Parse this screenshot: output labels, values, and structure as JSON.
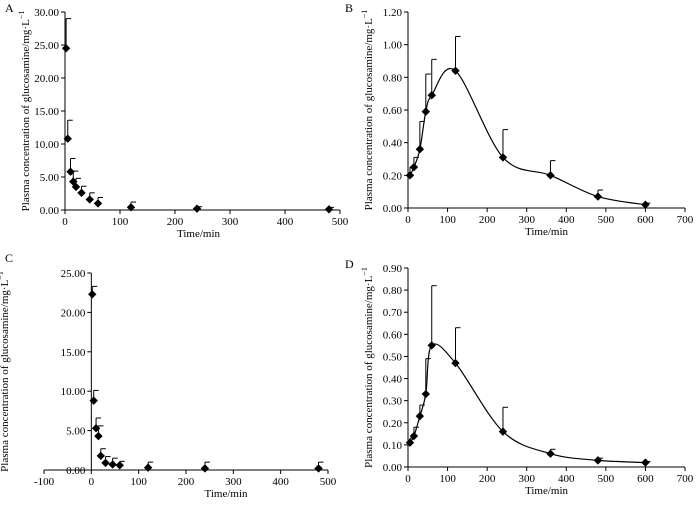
{
  "chart_data": [
    {
      "panel": "A",
      "type": "scatter",
      "xlabel": "Time/min",
      "ylabel": "Plasma concentration of glucosamine/mg·L",
      "ylabel_sup": "−1",
      "xlim": [
        0,
        500
      ],
      "ylim": [
        0,
        30
      ],
      "x_ticks": [
        0,
        100,
        200,
        300,
        400,
        500
      ],
      "y_ticks": [
        0,
        5,
        10,
        15,
        20,
        25,
        30
      ],
      "y_ticklabels": [
        "0.00",
        "5.00",
        "10.00",
        "15.00",
        "20.00",
        "25.00",
        "30.00"
      ],
      "x": [
        2,
        5,
        10,
        15,
        20,
        30,
        45,
        60,
        120,
        240,
        480
      ],
      "y": [
        24.5,
        10.8,
        5.8,
        4.3,
        3.5,
        2.6,
        1.6,
        1.0,
        0.4,
        0.2,
        0.1
      ],
      "err": [
        4.5,
        2.8,
        2.0,
        1.6,
        1.3,
        1.0,
        1.0,
        0.9,
        0.8,
        0.3,
        0.3
      ],
      "curve": false
    },
    {
      "panel": "B",
      "type": "line",
      "xlabel": "Time/min",
      "ylabel": "Plasma concentration of glucosamine/mg·L",
      "ylabel_sup": "−1",
      "xlim": [
        0,
        700
      ],
      "ylim": [
        0,
        1.2
      ],
      "x_ticks": [
        0,
        100,
        200,
        300,
        400,
        500,
        600,
        700
      ],
      "y_ticks": [
        0,
        0.2,
        0.4,
        0.6,
        0.8,
        1.0,
        1.2
      ],
      "y_ticklabels": [
        "0.00",
        "0.20",
        "0.40",
        "0.60",
        "0.80",
        "1.00",
        "1.20"
      ],
      "x": [
        5,
        15,
        30,
        45,
        60,
        120,
        240,
        360,
        480,
        600
      ],
      "y": [
        0.2,
        0.25,
        0.36,
        0.59,
        0.69,
        0.84,
        0.31,
        0.2,
        0.07,
        0.02
      ],
      "err": [
        0.05,
        0.06,
        0.17,
        0.23,
        0.22,
        0.21,
        0.17,
        0.09,
        0.04,
        0.01
      ],
      "curve": true
    },
    {
      "panel": "C",
      "type": "scatter",
      "xlabel": "Time/min",
      "ylabel": "Plasma concentration of glucosamine/mg·L",
      "ylabel_sup": "−1",
      "xlim": [
        -100,
        500
      ],
      "ylim": [
        0,
        25
      ],
      "x_ticks": [
        -100,
        0,
        100,
        200,
        300,
        400,
        500
      ],
      "y_ticks": [
        0,
        5,
        10,
        15,
        20,
        25
      ],
      "y_ticklabels": [
        "0.00",
        "5.00",
        "10.00",
        "15.00",
        "20.00",
        "25.00"
      ],
      "x": [
        2,
        5,
        10,
        15,
        20,
        30,
        45,
        60,
        120,
        240,
        480
      ],
      "y": [
        22.3,
        8.8,
        5.3,
        4.3,
        1.8,
        0.9,
        0.7,
        0.6,
        0.3,
        0.2,
        0.2
      ],
      "err": [
        1.0,
        1.3,
        1.3,
        1.3,
        0.9,
        0.8,
        0.8,
        0.5,
        0.7,
        0.8,
        0.8
      ],
      "curve": false
    },
    {
      "panel": "D",
      "type": "line",
      "xlabel": "Time/min",
      "ylabel": "Plasma concentration of glucosamine/mg·L",
      "ylabel_sup": "−1",
      "xlim": [
        0,
        700
      ],
      "ylim": [
        0,
        0.9
      ],
      "x_ticks": [
        0,
        100,
        200,
        300,
        400,
        500,
        600,
        700
      ],
      "y_ticks": [
        0,
        0.1,
        0.2,
        0.3,
        0.4,
        0.5,
        0.6,
        0.7,
        0.8,
        0.9
      ],
      "y_ticklabels": [
        "0.00",
        "0.10",
        "0.20",
        "0.30",
        "0.40",
        "0.50",
        "0.60",
        "0.70",
        "0.80",
        "0.90"
      ],
      "x": [
        5,
        15,
        30,
        45,
        60,
        120,
        240,
        360,
        480,
        600
      ],
      "y": [
        0.11,
        0.14,
        0.23,
        0.33,
        0.55,
        0.47,
        0.16,
        0.06,
        0.03,
        0.02
      ],
      "err": [
        0.02,
        0.04,
        0.05,
        0.16,
        0.27,
        0.16,
        0.11,
        0.02,
        0.01,
        0.005
      ],
      "curve": true
    }
  ]
}
